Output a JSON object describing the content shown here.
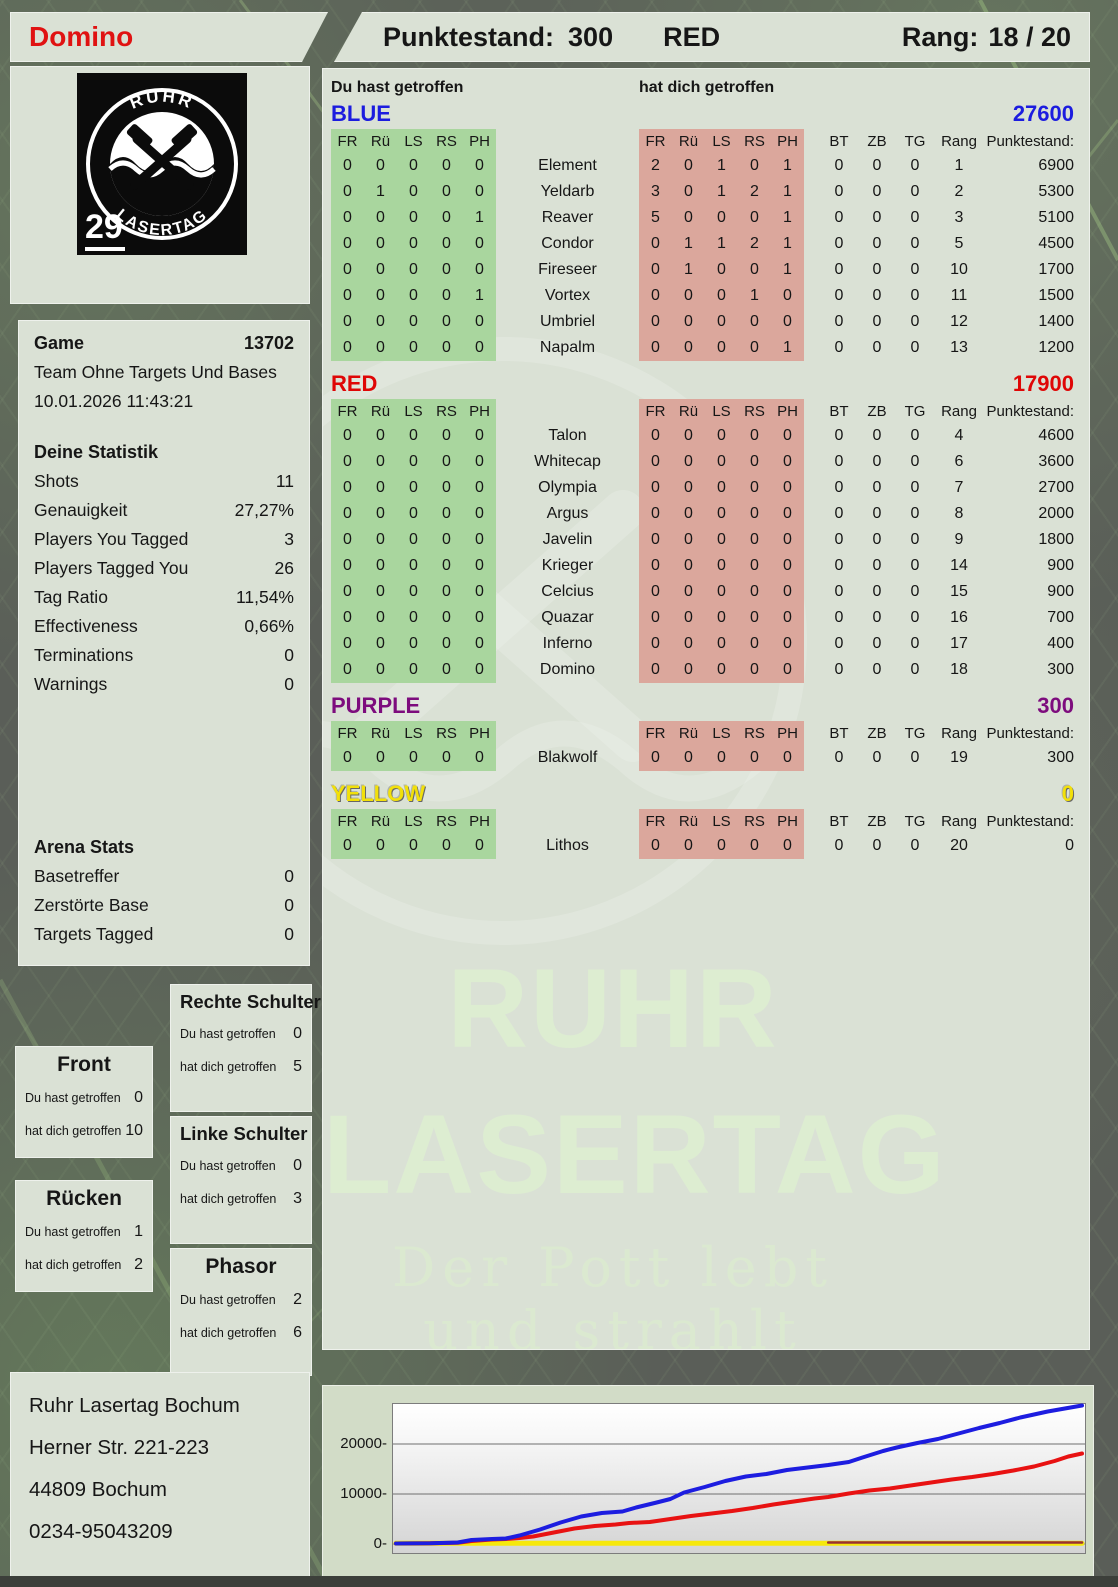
{
  "header": {
    "player": "Domino",
    "punktestand_label": "Punktestand:",
    "punktestand_value": "300",
    "team": "RED",
    "rang_label": "Rang:",
    "rang_value": "18 / 20"
  },
  "logo": {
    "top": "RUHR",
    "bottom": "LASERTAG",
    "badge": "29"
  },
  "game": {
    "label": "Game",
    "number": "13702",
    "mode": "Team Ohne Targets Und Bases",
    "datetime": "10.01.2026 11:43:21"
  },
  "deine_statistik": {
    "title": "Deine Statistik",
    "rows": [
      {
        "label": "Shots",
        "value": "11"
      },
      {
        "label": "Genauigkeit",
        "value": "27,27%"
      },
      {
        "label": "Players You Tagged",
        "value": "3"
      },
      {
        "label": "Players Tagged You",
        "value": "26"
      },
      {
        "label": "Tag Ratio",
        "value": "11,54%"
      },
      {
        "label": "Effectiveness",
        "value": "0,66%"
      },
      {
        "label": "Terminations",
        "value": "0"
      },
      {
        "label": "Warnings",
        "value": "0"
      }
    ]
  },
  "arena_stats": {
    "title": "Arena Stats",
    "rows": [
      {
        "label": "Basetreffer",
        "value": "0"
      },
      {
        "label": "Zerstörte Base",
        "value": "0"
      },
      {
        "label": "Targets Tagged",
        "value": "0"
      }
    ]
  },
  "hit_columns": {
    "you": "Du hast getroffen",
    "them": "hat dich getroffen"
  },
  "table_headers": {
    "hit": [
      "FR",
      "Rü",
      "LS",
      "RS",
      "PH"
    ],
    "stats": [
      "BT",
      "ZB",
      "TG",
      "Rang"
    ],
    "score": "Punktestand:"
  },
  "teams": [
    {
      "name": "BLUE",
      "color": "#1c1cdf",
      "score": "27600",
      "players": [
        {
          "name": "Element",
          "you": [
            0,
            0,
            0,
            0,
            0
          ],
          "them": [
            2,
            0,
            1,
            0,
            1
          ],
          "bt": 0,
          "zb": 0,
          "tg": 0,
          "rang": 1,
          "score": 6900
        },
        {
          "name": "Yeldarb",
          "you": [
            0,
            1,
            0,
            0,
            0
          ],
          "them": [
            3,
            0,
            1,
            2,
            1
          ],
          "bt": 0,
          "zb": 0,
          "tg": 0,
          "rang": 2,
          "score": 5300
        },
        {
          "name": "Reaver",
          "you": [
            0,
            0,
            0,
            0,
            1
          ],
          "them": [
            5,
            0,
            0,
            0,
            1
          ],
          "bt": 0,
          "zb": 0,
          "tg": 0,
          "rang": 3,
          "score": 5100
        },
        {
          "name": "Condor",
          "you": [
            0,
            0,
            0,
            0,
            0
          ],
          "them": [
            0,
            1,
            1,
            2,
            1
          ],
          "bt": 0,
          "zb": 0,
          "tg": 0,
          "rang": 5,
          "score": 4500
        },
        {
          "name": "Fireseer",
          "you": [
            0,
            0,
            0,
            0,
            0
          ],
          "them": [
            0,
            1,
            0,
            0,
            1
          ],
          "bt": 0,
          "zb": 0,
          "tg": 0,
          "rang": 10,
          "score": 1700
        },
        {
          "name": "Vortex",
          "you": [
            0,
            0,
            0,
            0,
            1
          ],
          "them": [
            0,
            0,
            0,
            1,
            0
          ],
          "bt": 0,
          "zb": 0,
          "tg": 0,
          "rang": 11,
          "score": 1500
        },
        {
          "name": "Umbriel",
          "you": [
            0,
            0,
            0,
            0,
            0
          ],
          "them": [
            0,
            0,
            0,
            0,
            0
          ],
          "bt": 0,
          "zb": 0,
          "tg": 0,
          "rang": 12,
          "score": 1400
        },
        {
          "name": "Napalm",
          "you": [
            0,
            0,
            0,
            0,
            0
          ],
          "them": [
            0,
            0,
            0,
            0,
            1
          ],
          "bt": 0,
          "zb": 0,
          "tg": 0,
          "rang": 13,
          "score": 1200
        }
      ]
    },
    {
      "name": "RED",
      "color": "#df0606",
      "score": "17900",
      "players": [
        {
          "name": "Talon",
          "you": [
            0,
            0,
            0,
            0,
            0
          ],
          "them": [
            0,
            0,
            0,
            0,
            0
          ],
          "bt": 0,
          "zb": 0,
          "tg": 0,
          "rang": 4,
          "score": 4600
        },
        {
          "name": "Whitecap",
          "you": [
            0,
            0,
            0,
            0,
            0
          ],
          "them": [
            0,
            0,
            0,
            0,
            0
          ],
          "bt": 0,
          "zb": 0,
          "tg": 0,
          "rang": 6,
          "score": 3600
        },
        {
          "name": "Olympia",
          "you": [
            0,
            0,
            0,
            0,
            0
          ],
          "them": [
            0,
            0,
            0,
            0,
            0
          ],
          "bt": 0,
          "zb": 0,
          "tg": 0,
          "rang": 7,
          "score": 2700
        },
        {
          "name": "Argus",
          "you": [
            0,
            0,
            0,
            0,
            0
          ],
          "them": [
            0,
            0,
            0,
            0,
            0
          ],
          "bt": 0,
          "zb": 0,
          "tg": 0,
          "rang": 8,
          "score": 2000
        },
        {
          "name": "Javelin",
          "you": [
            0,
            0,
            0,
            0,
            0
          ],
          "them": [
            0,
            0,
            0,
            0,
            0
          ],
          "bt": 0,
          "zb": 0,
          "tg": 0,
          "rang": 9,
          "score": 1800
        },
        {
          "name": "Krieger",
          "you": [
            0,
            0,
            0,
            0,
            0
          ],
          "them": [
            0,
            0,
            0,
            0,
            0
          ],
          "bt": 0,
          "zb": 0,
          "tg": 0,
          "rang": 14,
          "score": 900
        },
        {
          "name": "Celcius",
          "you": [
            0,
            0,
            0,
            0,
            0
          ],
          "them": [
            0,
            0,
            0,
            0,
            0
          ],
          "bt": 0,
          "zb": 0,
          "tg": 0,
          "rang": 15,
          "score": 900
        },
        {
          "name": "Quazar",
          "you": [
            0,
            0,
            0,
            0,
            0
          ],
          "them": [
            0,
            0,
            0,
            0,
            0
          ],
          "bt": 0,
          "zb": 0,
          "tg": 0,
          "rang": 16,
          "score": 700
        },
        {
          "name": "Inferno",
          "you": [
            0,
            0,
            0,
            0,
            0
          ],
          "them": [
            0,
            0,
            0,
            0,
            0
          ],
          "bt": 0,
          "zb": 0,
          "tg": 0,
          "rang": 17,
          "score": 400
        },
        {
          "name": "Domino",
          "you": [
            0,
            0,
            0,
            0,
            0
          ],
          "them": [
            0,
            0,
            0,
            0,
            0
          ],
          "bt": 0,
          "zb": 0,
          "tg": 0,
          "rang": 18,
          "score": 300
        }
      ]
    },
    {
      "name": "PURPLE",
      "color": "#7d0c7d",
      "score": "300",
      "players": [
        {
          "name": "Blakwolf",
          "you": [
            0,
            0,
            0,
            0,
            0
          ],
          "them": [
            0,
            0,
            0,
            0,
            0
          ],
          "bt": 0,
          "zb": 0,
          "tg": 0,
          "rang": 19,
          "score": 300
        }
      ]
    },
    {
      "name": "YELLOW",
      "color": "#f2e00a",
      "score": "0",
      "players": [
        {
          "name": "Lithos",
          "you": [
            0,
            0,
            0,
            0,
            0
          ],
          "them": [
            0,
            0,
            0,
            0,
            0
          ],
          "bt": 0,
          "zb": 0,
          "tg": 0,
          "rang": 20,
          "score": 0
        }
      ]
    }
  ],
  "body_labels": {
    "you": "Du hast getroffen",
    "them": "hat dich getroffen"
  },
  "body_parts": {
    "rechte_schulter": {
      "title": "Rechte Schulter",
      "you": "0",
      "them": "5"
    },
    "front": {
      "title": "Front",
      "you": "0",
      "them": "10"
    },
    "linke_schulter": {
      "title": "Linke Schulter",
      "you": "0",
      "them": "3"
    },
    "ruecken": {
      "title": "Rücken",
      "you": "1",
      "them": "2"
    },
    "phasor": {
      "title": "Phasor",
      "you": "2",
      "them": "6"
    }
  },
  "watermark": {
    "line1": "RUHR",
    "line2": "LASERTAG",
    "tagline": "Der Pott lebt und strahlt"
  },
  "address": {
    "lines": [
      "Ruhr Lasertag Bochum",
      "Herner Str. 221-223",
      "44809 Bochum",
      "0234-95043209"
    ]
  },
  "chart_data": {
    "type": "line",
    "title": "",
    "xlabel": "",
    "ylabel": "",
    "ylim": [
      0,
      28200
    ],
    "grid": true,
    "legend": "none",
    "yticks": [
      {
        "value": 20000,
        "label": "20000-"
      },
      {
        "value": 10000,
        "label": "10000-"
      },
      {
        "value": 0,
        "label": "0-"
      }
    ],
    "x_axis": "game time (normalized 0-1)",
    "series": [
      {
        "name": "YELLOW team score",
        "color": "#f6e80c",
        "points": [
          [
            0,
            150
          ],
          [
            1,
            150
          ]
        ]
      },
      {
        "name": "PURPLE team score",
        "color": "#993032",
        "points": [
          [
            0.63,
            300
          ],
          [
            1,
            300
          ]
        ]
      },
      {
        "name": "RED team score",
        "color": "#e81212",
        "points": [
          [
            0,
            100
          ],
          [
            0.05,
            150
          ],
          [
            0.09,
            250
          ],
          [
            0.11,
            600
          ],
          [
            0.14,
            900
          ],
          [
            0.16,
            1000
          ],
          [
            0.18,
            1200
          ],
          [
            0.2,
            1500
          ],
          [
            0.23,
            2300
          ],
          [
            0.26,
            3100
          ],
          [
            0.29,
            3600
          ],
          [
            0.32,
            3900
          ],
          [
            0.34,
            4200
          ],
          [
            0.37,
            4400
          ],
          [
            0.4,
            5000
          ],
          [
            0.43,
            5600
          ],
          [
            0.46,
            6100
          ],
          [
            0.49,
            6600
          ],
          [
            0.52,
            7200
          ],
          [
            0.55,
            7900
          ],
          [
            0.58,
            8500
          ],
          [
            0.61,
            9100
          ],
          [
            0.63,
            9400
          ],
          [
            0.66,
            10100
          ],
          [
            0.69,
            10700
          ],
          [
            0.72,
            11100
          ],
          [
            0.75,
            11700
          ],
          [
            0.78,
            12300
          ],
          [
            0.81,
            12900
          ],
          [
            0.84,
            13400
          ],
          [
            0.87,
            14000
          ],
          [
            0.9,
            14700
          ],
          [
            0.93,
            15500
          ],
          [
            0.96,
            16600
          ],
          [
            0.98,
            17500
          ],
          [
            1,
            18100
          ]
        ]
      },
      {
        "name": "BLUE team score",
        "color": "#1d1de0",
        "points": [
          [
            0,
            100
          ],
          [
            0.05,
            150
          ],
          [
            0.09,
            300
          ],
          [
            0.11,
            800
          ],
          [
            0.14,
            1000
          ],
          [
            0.16,
            1100
          ],
          [
            0.18,
            1700
          ],
          [
            0.21,
            2900
          ],
          [
            0.24,
            4300
          ],
          [
            0.27,
            5500
          ],
          [
            0.3,
            6200
          ],
          [
            0.33,
            6500
          ],
          [
            0.35,
            7300
          ],
          [
            0.38,
            8300
          ],
          [
            0.4,
            9000
          ],
          [
            0.42,
            10300
          ],
          [
            0.45,
            11400
          ],
          [
            0.48,
            12600
          ],
          [
            0.51,
            13500
          ],
          [
            0.54,
            14000
          ],
          [
            0.57,
            14800
          ],
          [
            0.6,
            15300
          ],
          [
            0.63,
            15800
          ],
          [
            0.66,
            16400
          ],
          [
            0.68,
            17300
          ],
          [
            0.71,
            18600
          ],
          [
            0.73,
            19300
          ],
          [
            0.76,
            20200
          ],
          [
            0.79,
            21000
          ],
          [
            0.82,
            22100
          ],
          [
            0.85,
            23200
          ],
          [
            0.88,
            24200
          ],
          [
            0.91,
            25300
          ],
          [
            0.95,
            26500
          ],
          [
            1,
            27700
          ]
        ]
      }
    ]
  }
}
